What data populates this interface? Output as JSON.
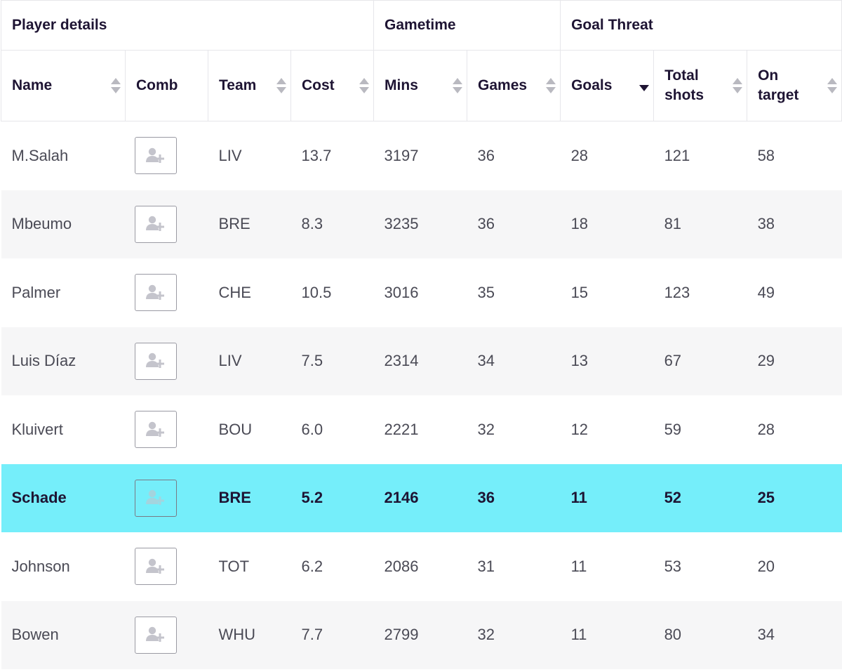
{
  "group_headers": {
    "player_details": "Player details",
    "gametime": "Gametime",
    "goal_threat": "Goal Threat"
  },
  "column_headers": {
    "name": "Name",
    "comb": "Comb",
    "team": "Team",
    "cost": "Cost",
    "mins": "Mins",
    "games": "Games",
    "goals": "Goals",
    "total_shots": "Total shots",
    "on_target": "On target"
  },
  "sort": {
    "column": "goals",
    "direction": "desc"
  },
  "icons": {
    "comb": "add-user-icon",
    "sort": "sort-arrows-icon"
  },
  "colors": {
    "highlight": "#75eefa",
    "header_text": "#1e1433"
  },
  "highlighted_row": 5,
  "rows": [
    {
      "name": "M.Salah",
      "team": "LIV",
      "cost": "13.7",
      "mins": "3197",
      "games": "36",
      "goals": "28",
      "total_shots": "121",
      "on_target": "58"
    },
    {
      "name": "Mbeumo",
      "team": "BRE",
      "cost": "8.3",
      "mins": "3235",
      "games": "36",
      "goals": "18",
      "total_shots": "81",
      "on_target": "38"
    },
    {
      "name": "Palmer",
      "team": "CHE",
      "cost": "10.5",
      "mins": "3016",
      "games": "35",
      "goals": "15",
      "total_shots": "123",
      "on_target": "49"
    },
    {
      "name": "Luis Díaz",
      "team": "LIV",
      "cost": "7.5",
      "mins": "2314",
      "games": "34",
      "goals": "13",
      "total_shots": "67",
      "on_target": "29"
    },
    {
      "name": "Kluivert",
      "team": "BOU",
      "cost": "6.0",
      "mins": "2221",
      "games": "32",
      "goals": "12",
      "total_shots": "59",
      "on_target": "28"
    },
    {
      "name": "Schade",
      "team": "BRE",
      "cost": "5.2",
      "mins": "2146",
      "games": "36",
      "goals": "11",
      "total_shots": "52",
      "on_target": "25"
    },
    {
      "name": "Johnson",
      "team": "TOT",
      "cost": "6.2",
      "mins": "2086",
      "games": "31",
      "goals": "11",
      "total_shots": "53",
      "on_target": "20"
    },
    {
      "name": "Bowen",
      "team": "WHU",
      "cost": "7.7",
      "mins": "2799",
      "games": "32",
      "goals": "11",
      "total_shots": "80",
      "on_target": "34"
    }
  ]
}
